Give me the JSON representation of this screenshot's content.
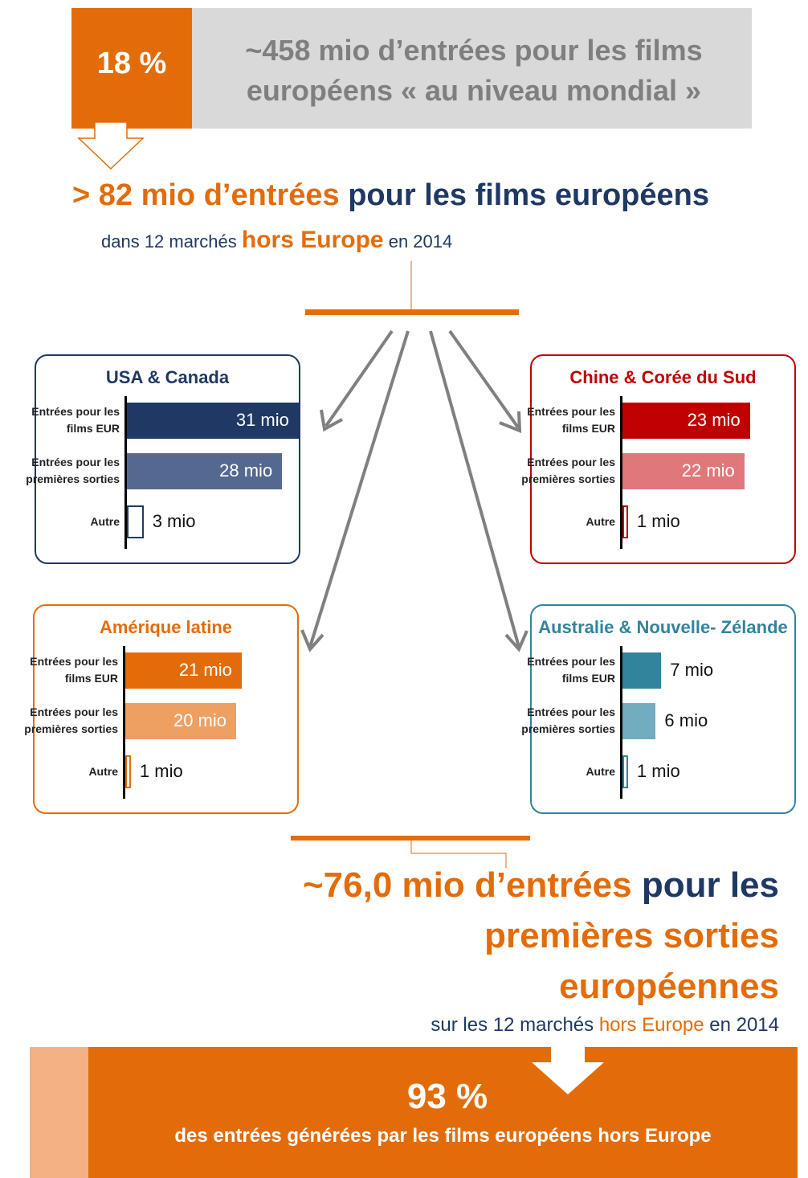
{
  "top": {
    "percent": "18 %",
    "text": "~458 mio d’entrées pour les films européens « au niveau mondial »"
  },
  "headline": {
    "lead": "> 82 mio d’entrées",
    "rest": "pour les films européens"
  },
  "subline": {
    "pre": "dans 12 marchés",
    "highlight": "hors Europe",
    "post": "en 2014"
  },
  "panels": [
    {
      "title": "USA & Canada",
      "color": "#1f3864",
      "bar_colors": [
        "#1f3864",
        "#55688f",
        "#1f3864"
      ],
      "categories": [
        "Entrées pour les films EUR",
        "Entrées pour les premières sorties",
        "Autre"
      ],
      "values": [
        31,
        28,
        3
      ],
      "value_labels": [
        "31 mio",
        "28 mio",
        "3 mio"
      ]
    },
    {
      "title": "Chine & Corée du Sud",
      "color": "#c00000",
      "bar_colors": [
        "#c00000",
        "#e0777b",
        "#c00000"
      ],
      "categories": [
        "Entrées pour les films EUR",
        "Entrées pour les premières sorties",
        "Autre"
      ],
      "values": [
        23,
        22,
        1
      ],
      "value_labels": [
        "23 mio",
        "22 mio",
        "1 mio"
      ]
    },
    {
      "title": "Amérique latine",
      "color": "#e36c0a",
      "bar_colors": [
        "#e36c0a",
        "#ee9f62",
        "#e36c0a"
      ],
      "categories": [
        "Entrées pour les films EUR",
        "Entrées pour les premières sorties",
        "Autre"
      ],
      "values": [
        21,
        20,
        1
      ],
      "value_labels": [
        "21 mio",
        "20 mio",
        "1 mio"
      ]
    },
    {
      "title": "Australie & Nouvelle- Zélande",
      "color": "#31849b",
      "bar_colors": [
        "#31849b",
        "#70aebf",
        "#31849b"
      ],
      "categories": [
        "Entrées pour les films EUR",
        "Entrées pour les premières sorties",
        "Autre"
      ],
      "values": [
        7,
        6,
        1
      ],
      "value_labels": [
        "7 mio",
        "6 mio",
        "1 mio"
      ]
    }
  ],
  "bottom": {
    "lead": "~76,0 mio d’entrées",
    "rest": "pour les",
    "line2": "premières sorties",
    "line3": "européennes",
    "sub_pre": "sur les 12 marchés",
    "sub_highlight": "hors Europe",
    "sub_post": "en 2014"
  },
  "footer": {
    "percent": "93 %",
    "text": "des entrées générées par les films européens hors Europe"
  }
}
